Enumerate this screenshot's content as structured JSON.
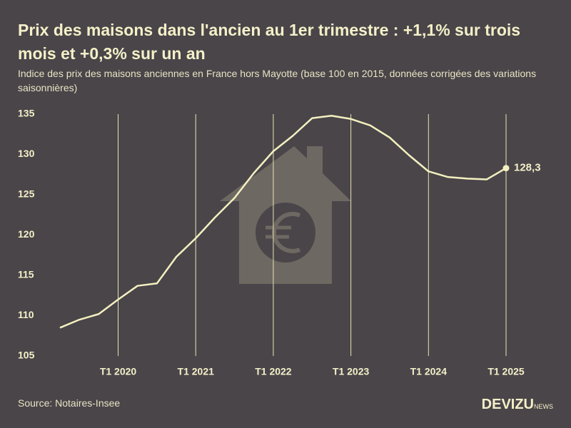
{
  "chart_data": {
    "type": "line",
    "title": "Prix des maisons dans l'ancien au 1er trimestre : +1,1% sur trois mois et +0,3% sur un an",
    "subtitle": "Indice des prix des maisons anciennes en France hors Mayotte (base 100 en 2015, données corrigées des variations saisonnières)",
    "source": "Source: Notaires-Insee",
    "brand": "DEVIZU",
    "brand_suffix": "NEWS",
    "categories": [
      null,
      null,
      null,
      "T1 2020",
      null,
      null,
      null,
      "T1 2021",
      null,
      null,
      null,
      "T1 2022",
      null,
      null,
      null,
      "T1 2023",
      null,
      null,
      null,
      "T1 2024",
      null,
      null,
      null,
      "T1 2025"
    ],
    "series": [
      {
        "name": "Indice",
        "color": "#f3f0c0",
        "values": [
          108.5,
          109.5,
          110.2,
          112.0,
          113.7,
          114.0,
          117.3,
          119.6,
          122.2,
          124.6,
          127.7,
          130.4,
          132.3,
          134.5,
          134.8,
          134.4,
          133.6,
          132.1,
          129.9,
          127.9,
          127.2,
          127.0,
          126.9,
          128.3
        ],
        "value_labels": [
          null,
          null,
          null,
          null,
          null,
          null,
          null,
          null,
          null,
          null,
          null,
          null,
          null,
          null,
          null,
          null,
          null,
          null,
          null,
          null,
          null,
          null,
          null,
          "128,3"
        ]
      }
    ],
    "ylim": [
      105,
      135
    ],
    "yticks": [
      105,
      110,
      115,
      120,
      125,
      130,
      135
    ],
    "grid": true
  }
}
